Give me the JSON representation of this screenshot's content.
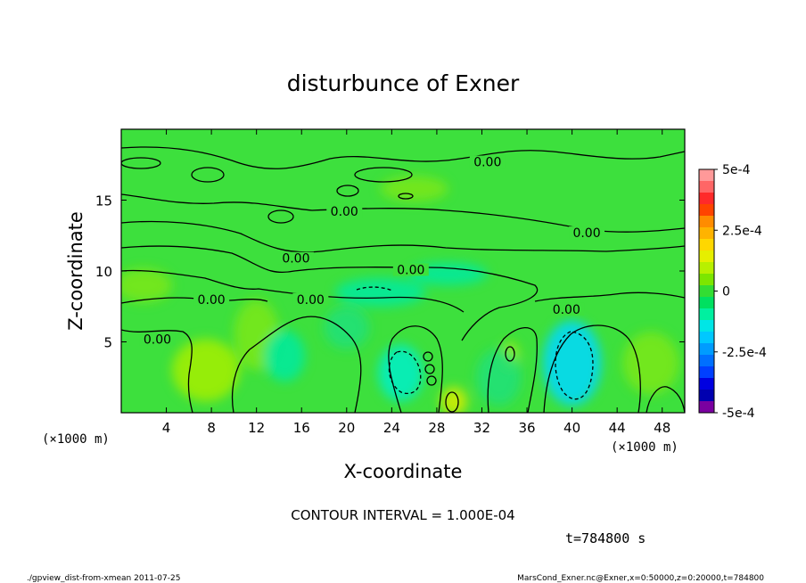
{
  "chart_data": {
    "type": "heatmap",
    "title": "disturbunce of Exner",
    "xlabel": "X-coordinate",
    "ylabel": "Z-coordinate",
    "x_unit": "(×1000 m)",
    "x_unit_right": "(×1000 m)",
    "xlim": [
      0,
      50
    ],
    "ylim": [
      0,
      20
    ],
    "x_ticks": [
      "4",
      "8",
      "12",
      "16",
      "20",
      "24",
      "28",
      "32",
      "36",
      "40",
      "44",
      "48"
    ],
    "y_ticks": [
      "5",
      "10",
      "15"
    ],
    "contour_interval_text": "CONTOUR INTERVAL = 1.000E-04",
    "contour_labels": [
      {
        "text": "0.00",
        "x": 32.5,
        "z": 17.7
      },
      {
        "text": "0.00",
        "x": 19.8,
        "z": 14.2
      },
      {
        "text": "0.00",
        "x": 41.3,
        "z": 12.7
      },
      {
        "text": "0.00",
        "x": 15.5,
        "z": 10.9
      },
      {
        "text": "0.00",
        "x": 25.7,
        "z": 10.1
      },
      {
        "text": "0.00",
        "x": 8.0,
        "z": 8.0
      },
      {
        "text": "0.00",
        "x": 16.8,
        "z": 8.0
      },
      {
        "text": "0.00",
        "x": 39.5,
        "z": 7.3
      },
      {
        "text": "0.00",
        "x": 3.2,
        "z": 5.2
      }
    ],
    "colorbar": {
      "min": -0.0005,
      "max": 0.0005,
      "labels": [
        "5e-4",
        "2.5e-4",
        "0",
        "-2.5e-4",
        "-5e-4"
      ],
      "colors": [
        "#ff9999",
        "#ff6666",
        "#ff2a2a",
        "#ff4400",
        "#ff8c00",
        "#ffb300",
        "#ffd700",
        "#e6ef00",
        "#b8f000",
        "#7ce600",
        "#33dd33",
        "#00e060",
        "#00f0a0",
        "#00e6e6",
        "#00c8ff",
        "#009cff",
        "#0070ff",
        "#0040ff",
        "#0000e0",
        "#0000b0",
        "#7a00a0"
      ]
    },
    "field_blobs": [
      {
        "x": 7.5,
        "z": 3.0,
        "rx": 3.0,
        "rz": 2.2,
        "level": 0.8
      },
      {
        "x": 2.0,
        "z": 9.0,
        "rx": 2.5,
        "rz": 1.2,
        "level": 0.6
      },
      {
        "x": 12.0,
        "z": 5.5,
        "rx": 2.0,
        "rz": 2.5,
        "level": 0.5
      },
      {
        "x": 29.5,
        "z": 0.8,
        "rx": 1.2,
        "rz": 1.0,
        "level": 1.4
      },
      {
        "x": 34.5,
        "z": 4.0,
        "rx": 0.8,
        "rz": 1.0,
        "level": 1.0
      },
      {
        "x": 26.0,
        "z": 15.8,
        "rx": 3.0,
        "rz": 0.9,
        "level": 0.6
      },
      {
        "x": 40.0,
        "z": 3.5,
        "rx": 2.6,
        "rz": 3.0,
        "level": -1.6
      },
      {
        "x": 24.8,
        "z": 2.8,
        "rx": 2.0,
        "rz": 2.0,
        "level": -1.3
      },
      {
        "x": 14.5,
        "z": 4.0,
        "rx": 1.8,
        "rz": 1.8,
        "level": -0.8
      },
      {
        "x": 23.0,
        "z": 8.5,
        "rx": 4.0,
        "rz": 1.0,
        "level": -0.8
      },
      {
        "x": 29.0,
        "z": 9.8,
        "rx": 3.5,
        "rz": 0.8,
        "level": -0.6
      },
      {
        "x": 33.5,
        "z": 2.5,
        "rx": 2.0,
        "rz": 2.0,
        "level": -0.5
      },
      {
        "x": 47.0,
        "z": 3.5,
        "rx": 2.5,
        "rz": 2.2,
        "level": 0.5
      },
      {
        "x": 20.0,
        "z": 6.0,
        "rx": 2.0,
        "rz": 1.5,
        "level": -0.5
      }
    ]
  },
  "time_label": "t=784800 s",
  "footer_left": "./gpview_dist-from-xmean  2011-07-25",
  "footer_right": "MarsCond_Exner.nc@Exner,x=0:50000,z=0:20000,t=784800"
}
